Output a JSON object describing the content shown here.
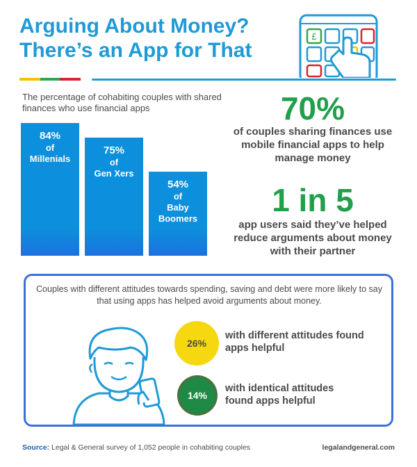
{
  "title": {
    "line1": "Arguing About Money?",
    "line2": "There’s an App for That"
  },
  "subtitle": "The percentage of cohabiting couples with shared finances who use financial apps",
  "bars": [
    {
      "pct": "84%",
      "label": "of\nMillenials",
      "value": 84
    },
    {
      "pct": "75%",
      "label": "of\nGen Xers",
      "value": 75
    },
    {
      "pct": "54%",
      "label": "of\nBaby\nBoomers",
      "value": 54
    }
  ],
  "stat1": {
    "number": "70%",
    "text": "of couples sharing finances use mobile financial apps to help manage money"
  },
  "stat2": {
    "number": "1 in 5",
    "text": "app users said they’ve helped reduce arguments about money with their partner"
  },
  "box": {
    "text": "Couples with different attitudes towards spending, saving and debt were more likely to say that using apps has helped avoid arguments about money.",
    "item1": {
      "pct": "26%",
      "text": "with different attitudes found apps helpful",
      "color": "#f5d80f"
    },
    "item2": {
      "pct": "14%",
      "text": "with identical attitudes found apps helpful",
      "color": "#1f8a45"
    }
  },
  "footer": {
    "source_label": "Source:",
    "source_text": "Legal & General survey of 1,052 people in cohabiting couples",
    "site": "legalandgeneral.com"
  },
  "colors": {
    "accent_blue": "#1f9ad6",
    "bar_blue": "#0c8fdc",
    "green": "#20a04b",
    "border_blue": "#3d6fd9"
  }
}
